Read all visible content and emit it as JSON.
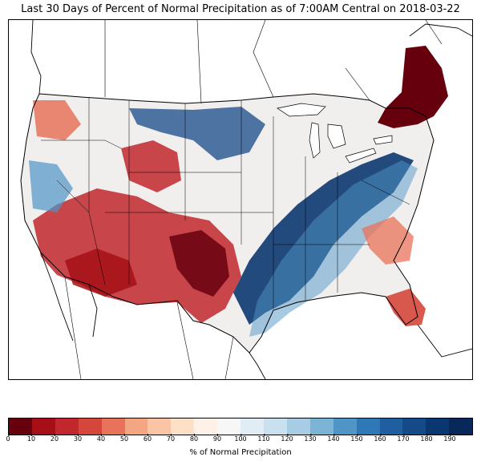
{
  "title": "Last 30 Days of Percent of Normal Precipitation as of 7:00AM Central on 2018-03-22",
  "colorbar": {
    "label": "% of Normal Precipitation",
    "ticks": [
      "0",
      "10",
      "20",
      "30",
      "40",
      "50",
      "60",
      "70",
      "80",
      "90",
      "100",
      "110",
      "120",
      "130",
      "140",
      "150",
      "160",
      "170",
      "180",
      "190"
    ],
    "colors": [
      "#67000d",
      "#a50f15",
      "#c1272d",
      "#d6473b",
      "#e8735a",
      "#f4a582",
      "#fbc4a4",
      "#fde0c5",
      "#fdf1e8",
      "#f7f7f7",
      "#e1edf5",
      "#c9e0ee",
      "#a6cde3",
      "#7cb4d6",
      "#4f96c7",
      "#2f78b6",
      "#1f5fa0",
      "#144a88",
      "#0b3770",
      "#08285a"
    ]
  },
  "map": {
    "region": "Contiguous United States",
    "legend_colors": {
      "very_dry": "#67000d",
      "dry": "#c1272d",
      "normal": "#f7f7f7",
      "wet": "#4f96c7",
      "very_wet": "#08285a"
    }
  }
}
